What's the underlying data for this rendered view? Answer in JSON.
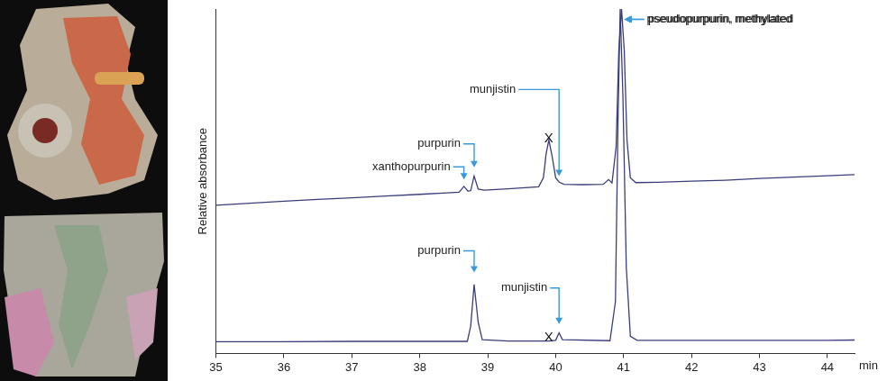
{
  "chart_data": {
    "type": "line",
    "y_label": "Relative absorbance",
    "x_label": "min",
    "xlim": [
      35,
      44.4
    ],
    "xticks": [
      35,
      36,
      37,
      38,
      39,
      40,
      41,
      42,
      43,
      44
    ],
    "ylim": [
      0,
      100
    ],
    "yticks": [],
    "tick_labels": "x",
    "grid": false,
    "series": [
      {
        "color": "#3b3d7a",
        "x": [
          35.0,
          35.5,
          36.0,
          36.5,
          37.0,
          37.5,
          38.0,
          38.4,
          38.58,
          38.65,
          38.71,
          38.75,
          38.8,
          38.86,
          38.95,
          39.3,
          39.75,
          39.82,
          39.86,
          39.9,
          39.95,
          40.0,
          40.05,
          40.12,
          40.4,
          40.7,
          40.78,
          40.83,
          40.89,
          40.93,
          40.97,
          41.01,
          41.05,
          41.1,
          41.18,
          41.5,
          42.0,
          42.5,
          43.0,
          43.5,
          44.0,
          44.4
        ],
        "values": [
          43.0,
          43.6,
          44.2,
          44.7,
          45.2,
          45.7,
          46.2,
          46.6,
          46.8,
          48.5,
          47.1,
          47.3,
          51.5,
          47.7,
          47.4,
          47.8,
          48.4,
          51,
          58,
          62,
          57,
          51,
          49.8,
          49.1,
          49.0,
          49.1,
          50.5,
          49.5,
          60,
          88,
          100,
          88,
          62,
          51,
          49.6,
          49.7,
          50.0,
          50.3,
          50.8,
          51.2,
          51.6,
          51.9
        ]
      },
      {
        "color": "#3b3d7a",
        "x": [
          35.0,
          36.0,
          37.0,
          38.0,
          38.7,
          38.75,
          38.8,
          38.86,
          38.92,
          39.3,
          39.9,
          40.0,
          40.05,
          40.1,
          40.8,
          40.88,
          40.92,
          40.95,
          40.99,
          41.04,
          41.1,
          41.2,
          42.0,
          43.0,
          44.0,
          44.4
        ],
        "values": [
          3.4,
          3.4,
          3.5,
          3.5,
          3.5,
          8,
          20,
          9,
          4,
          3.6,
          3.6,
          3.8,
          6,
          4,
          3.7,
          15,
          70,
          100,
          75,
          25,
          5,
          3.8,
          3.8,
          3.8,
          3.8,
          3.9
        ]
      }
    ],
    "annotations": [
      {
        "text": "pseudopurpurin, methylated",
        "x": 40.99,
        "y": 97
      },
      {
        "text": "munjistin",
        "x": 40.05,
        "y": 51
      },
      {
        "text": "purpurin",
        "x": 38.8,
        "y": 53.5
      },
      {
        "text": "xanthopurpurin",
        "x": 38.65,
        "y": 50
      },
      {
        "text": "pseudopurpurin, methylated",
        "x": 40.97,
        "y": 97
      },
      {
        "text": "purpurin",
        "x": 38.8,
        "y": 23
      },
      {
        "text": "munjistin",
        "x": 40.05,
        "y": 8
      }
    ],
    "marks": [
      {
        "text": "X",
        "x": 39.9,
        "y": 62.5
      },
      {
        "text": "X",
        "x": 39.9,
        "y": 4.5
      }
    ]
  }
}
